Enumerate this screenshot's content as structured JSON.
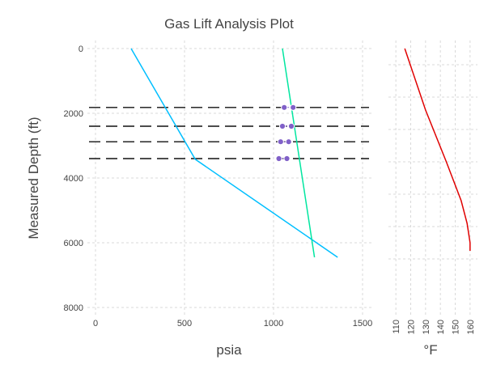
{
  "chart_data": {
    "type": "line",
    "title": "Gas Lift Analysis Plot",
    "ylabel": "Measured Depth (ft)",
    "y_reversed": true,
    "ylim": [
      0,
      8000
    ],
    "yticks": [
      0,
      2000,
      4000,
      6000,
      8000
    ],
    "grid": true,
    "legend": "none",
    "panels": [
      {
        "xlabel": "psia",
        "xlim": [
          0,
          1500
        ],
        "xticks": [
          0,
          500,
          1000,
          1500
        ],
        "series": [
          {
            "color": "#00bfff",
            "points": [
              [
                200,
                0
              ],
              [
                560,
                3420
              ],
              [
                1360,
                6450
              ]
            ]
          },
          {
            "color": "#00e6a0",
            "points": [
              [
                1050,
                0
              ],
              [
                1230,
                6450
              ]
            ]
          }
        ],
        "dashed_lines": {
          "color": "#111111",
          "depths": [
            1820,
            2400,
            2880,
            3400
          ],
          "x_range": [
            -50,
            1550
          ]
        },
        "markers": {
          "color": "#8060c8",
          "points": [
            [
              1060,
              1820
            ],
            [
              1110,
              1820
            ],
            [
              1050,
              2400
            ],
            [
              1100,
              2400
            ],
            [
              1040,
              2880
            ],
            [
              1085,
              2880
            ],
            [
              1030,
              3400
            ],
            [
              1075,
              3400
            ]
          ]
        }
      },
      {
        "xlabel": "°F",
        "xlim": [
          105,
          165
        ],
        "xticks": [
          110,
          120,
          130,
          140,
          150,
          160
        ],
        "series": [
          {
            "color": "#e00000",
            "points": [
              [
                116,
                0
              ],
              [
                130,
                1900
              ],
              [
                144,
                3500
              ],
              [
                154,
                4700
              ],
              [
                158,
                5400
              ],
              [
                160,
                6000
              ],
              [
                160,
                6250
              ]
            ]
          }
        ]
      }
    ]
  }
}
